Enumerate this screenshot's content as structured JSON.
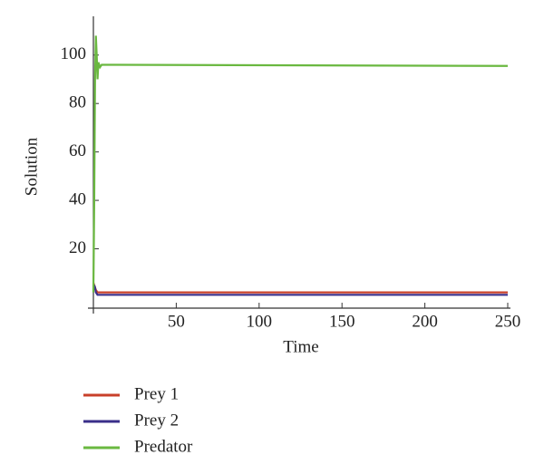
{
  "chart_data": {
    "type": "line",
    "xlabel": "Time",
    "ylabel": "Solution",
    "x": [
      0,
      0.5,
      1,
      1.5,
      2,
      2.5,
      3,
      4,
      5,
      250
    ],
    "series": [
      {
        "name": "Prey 1",
        "color": "#c8402a",
        "values": [
          4,
          5,
          4,
          3,
          2.5,
          2,
          2,
          2,
          2,
          2
        ]
      },
      {
        "name": "Prey 2",
        "color": "#3a2f8a",
        "values": [
          3,
          5,
          4,
          2,
          1.5,
          1,
          1,
          1,
          1,
          1
        ]
      },
      {
        "name": "Predator",
        "color": "#6ab840",
        "values": [
          2,
          40,
          90,
          108,
          100,
          90,
          97,
          95,
          96,
          95.5
        ]
      }
    ],
    "xlim": [
      0,
      250
    ],
    "ylim": [
      -4.5,
      116
    ],
    "xticks": [
      50,
      100,
      150,
      200,
      250
    ],
    "yticks": [
      20,
      40,
      60,
      80,
      100
    ],
    "grid": false
  }
}
